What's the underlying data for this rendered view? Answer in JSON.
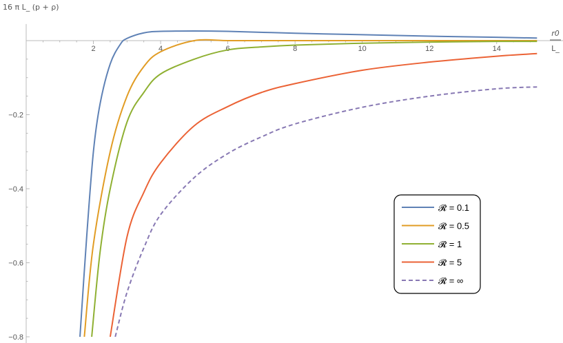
{
  "chart_data": {
    "type": "line",
    "title": "",
    "ylabel": "16 π L_ (p + ρ)",
    "xlabel_num": "r0",
    "xlabel_den": "L_",
    "xlim": [
      0,
      15.2
    ],
    "ylim": [
      -0.8,
      0.03
    ],
    "x_ticks": [
      2,
      4,
      6,
      8,
      10,
      12,
      14
    ],
    "x_tick_labels": [
      "2",
      "4",
      "6",
      "8",
      "10",
      "12",
      "14"
    ],
    "y_ticks": [
      -0.2,
      -0.4,
      -0.6,
      -0.8
    ],
    "y_tick_labels": [
      "−0.2",
      "−0.4",
      "−0.6",
      "−0.8"
    ],
    "legend_position": "bottom-right",
    "series": [
      {
        "name": "𝓡 = 0.1",
        "color": "#5E81B5",
        "dash": false,
        "x": [
          1.6,
          1.8,
          2.0,
          2.2,
          2.5,
          2.8,
          3.0,
          3.5,
          4.0,
          5.0,
          6.0,
          8.0,
          10.0,
          12.0,
          14.0,
          15.2
        ],
        "y": [
          -0.8,
          -0.53,
          -0.3,
          -0.17,
          -0.063,
          -0.01,
          0.006,
          0.021,
          0.025,
          0.026,
          0.025,
          0.02,
          0.016,
          0.012,
          0.009,
          0.007
        ]
      },
      {
        "name": "𝓡 = 0.5",
        "color": "#E19C24",
        "dash": false,
        "x": [
          1.73,
          2.0,
          2.5,
          3.0,
          3.5,
          4.0,
          5.0,
          6.0,
          7.0,
          8.0,
          10.0,
          12.0,
          14.0,
          15.2
        ],
        "y": [
          -0.8,
          -0.55,
          -0.3,
          -0.15,
          -0.07,
          -0.03,
          0.0,
          0.0,
          0.0,
          0.0,
          0.0,
          0.0,
          0.0,
          0.0
        ]
      },
      {
        "name": "𝓡 = 1",
        "color": "#8FB032",
        "dash": false,
        "x": [
          1.95,
          2.2,
          2.5,
          3.0,
          3.5,
          4.0,
          5.0,
          6.0,
          7.0,
          8.0,
          10.0,
          12.0,
          14.0,
          15.2
        ],
        "y": [
          -0.8,
          -0.57,
          -0.4,
          -0.22,
          -0.14,
          -0.09,
          -0.05,
          -0.025,
          -0.017,
          -0.012,
          -0.007,
          -0.004,
          -0.002,
          -0.002
        ]
      },
      {
        "name": "𝓡 = 5",
        "color": "#EB6235",
        "dash": false,
        "x": [
          2.5,
          3.0,
          3.5,
          4.0,
          5.0,
          6.0,
          7.0,
          8.0,
          10.0,
          12.0,
          14.0,
          15.2
        ],
        "y": [
          -0.8,
          -0.53,
          -0.41,
          -0.33,
          -0.23,
          -0.178,
          -0.14,
          -0.116,
          -0.08,
          -0.058,
          -0.042,
          -0.035
        ]
      },
      {
        "name": "𝓡 = ∞",
        "color": "#8778B3",
        "dash": true,
        "x": [
          2.65,
          3.0,
          3.5,
          4.0,
          5.0,
          6.0,
          7.0,
          8.0,
          10.0,
          12.0,
          14.0,
          15.2
        ],
        "y": [
          -0.8,
          -0.68,
          -0.56,
          -0.47,
          -0.37,
          -0.305,
          -0.26,
          -0.225,
          -0.18,
          -0.15,
          -0.13,
          -0.125
        ]
      }
    ]
  }
}
